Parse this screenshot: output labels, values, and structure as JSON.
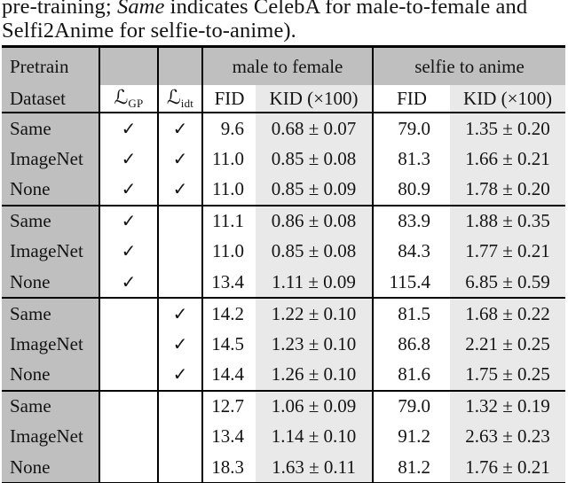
{
  "caption": {
    "line1_pre": "pre-training; ",
    "line1_italic": "Same",
    "line1_post": " indicates CelebA for male-to-female and",
    "line2": "Selfi2Anime for selfie-to-anime)."
  },
  "table": {
    "header": {
      "pretrain": "Pretrain",
      "dataset": "Dataset",
      "group_male_to_female": "male to female",
      "group_selfie_to_anime": "selfie to anime",
      "loss_gp_symbol": "ℒ",
      "loss_gp_sub": "GP",
      "loss_idt_symbol": "ℒ",
      "loss_idt_sub": "idt",
      "fid_mf": "FID",
      "kid_mf": "KID (×100)",
      "fid_sa": "FID",
      "kid_sa": "KID (×100)"
    },
    "rows": [
      {
        "dataset": "Same",
        "gp": "✓",
        "idt": "✓",
        "fid_mf": "9.6",
        "kid_mf": "0.68 ± 0.07",
        "fid_sa": "79.0",
        "kid_sa": "1.35 ± 0.20",
        "group_end": false
      },
      {
        "dataset": "ImageNet",
        "gp": "✓",
        "idt": "✓",
        "fid_mf": "11.0",
        "kid_mf": "0.85 ± 0.08",
        "fid_sa": "81.3",
        "kid_sa": "1.66 ± 0.21",
        "group_end": false
      },
      {
        "dataset": "None",
        "gp": "✓",
        "idt": "✓",
        "fid_mf": "11.0",
        "kid_mf": "0.85 ± 0.09",
        "fid_sa": "80.9",
        "kid_sa": "1.78 ± 0.20",
        "group_end": true
      },
      {
        "dataset": "Same",
        "gp": "✓",
        "idt": "",
        "fid_mf": "11.1",
        "kid_mf": "0.86 ± 0.08",
        "fid_sa": "83.9",
        "kid_sa": "1.88 ± 0.35",
        "group_end": false
      },
      {
        "dataset": "ImageNet",
        "gp": "✓",
        "idt": "",
        "fid_mf": "11.0",
        "kid_mf": "0.85 ± 0.08",
        "fid_sa": "84.3",
        "kid_sa": "1.77 ± 0.21",
        "group_end": false
      },
      {
        "dataset": "None",
        "gp": "✓",
        "idt": "",
        "fid_mf": "13.4",
        "kid_mf": "1.11 ± 0.09",
        "fid_sa": "115.4",
        "kid_sa": "6.85 ± 0.59",
        "group_end": true
      },
      {
        "dataset": "Same",
        "gp": "",
        "idt": "✓",
        "fid_mf": "14.2",
        "kid_mf": "1.22 ± 0.10",
        "fid_sa": "81.5",
        "kid_sa": "1.68 ± 0.22",
        "group_end": false
      },
      {
        "dataset": "ImageNet",
        "gp": "",
        "idt": "✓",
        "fid_mf": "14.5",
        "kid_mf": "1.23 ± 0.10",
        "fid_sa": "86.8",
        "kid_sa": "2.21 ± 0.25",
        "group_end": false
      },
      {
        "dataset": "None",
        "gp": "",
        "idt": "✓",
        "fid_mf": "14.4",
        "kid_mf": "1.26 ± 0.10",
        "fid_sa": "81.6",
        "kid_sa": "1.75 ± 0.25",
        "group_end": true
      },
      {
        "dataset": "Same",
        "gp": "",
        "idt": "",
        "fid_mf": "12.7",
        "kid_mf": "1.06 ± 0.09",
        "fid_sa": "79.0",
        "kid_sa": "1.32 ± 0.19",
        "group_end": false
      },
      {
        "dataset": "ImageNet",
        "gp": "",
        "idt": "",
        "fid_mf": "13.4",
        "kid_mf": "1.14 ± 0.10",
        "fid_sa": "91.2",
        "kid_sa": "2.63 ± 0.23",
        "group_end": false
      },
      {
        "dataset": "None",
        "gp": "",
        "idt": "",
        "fid_mf": "18.3",
        "kid_mf": "1.63 ± 0.11",
        "fid_sa": "81.2",
        "kid_sa": "1.76 ± 0.21",
        "group_end": false
      }
    ]
  },
  "icons": {
    "check": "✓"
  },
  "colors": {
    "header_gray": "#bfbfbf",
    "kid_column_gray": "#e9e9e9",
    "rule_black": "#000000"
  }
}
